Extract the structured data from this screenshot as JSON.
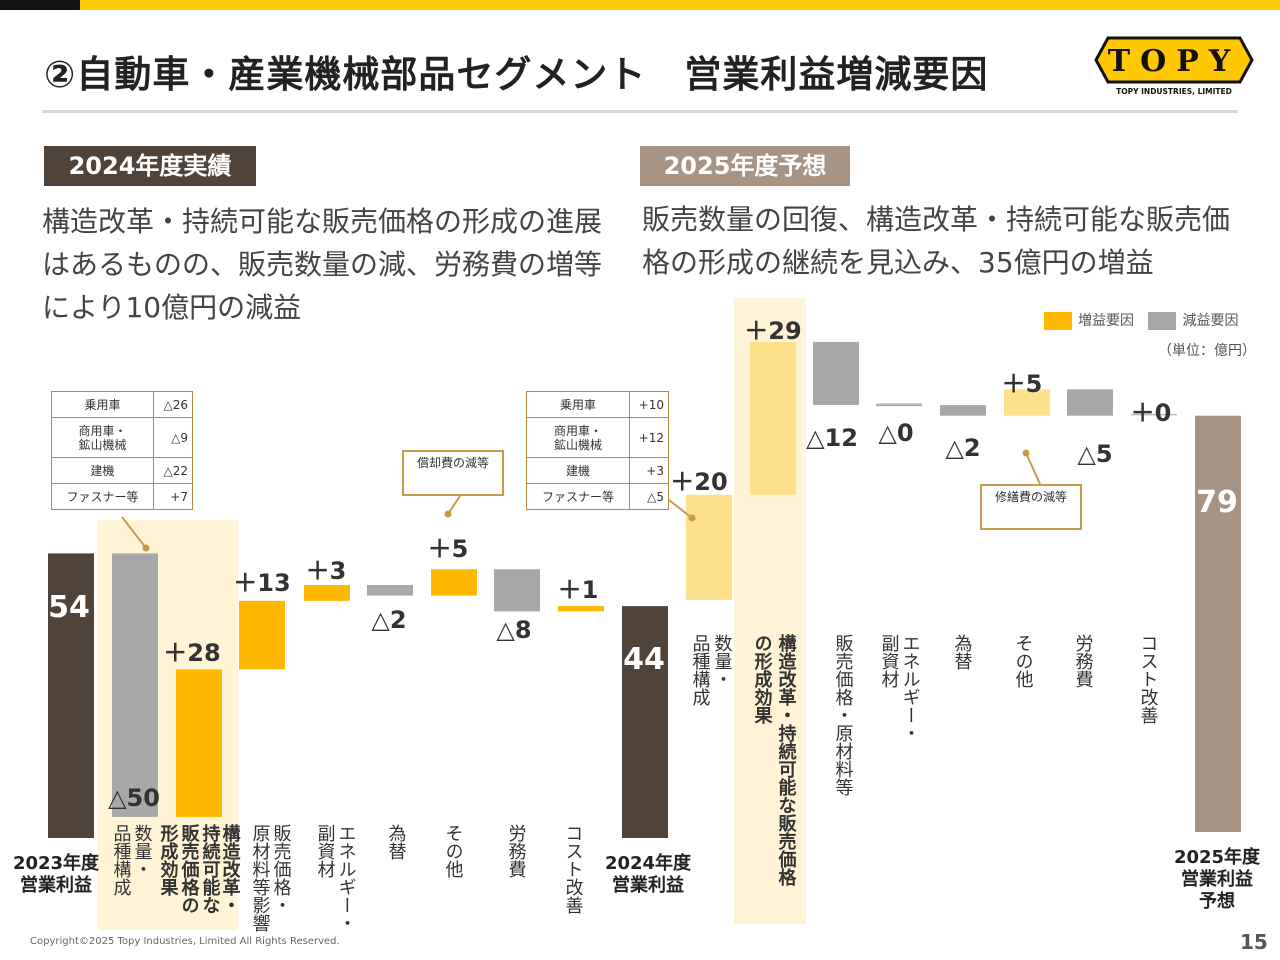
{
  "title": "②自動車・産業機械部品セグメント　営業利益増減要因",
  "logo": {
    "text": "TOPY",
    "subtext": "TOPY INDUSTRIES, LIMITED"
  },
  "sections": [
    {
      "label": "2024年度実績",
      "description": "構造改革・持続可能な販売価格の形成の進展はあるものの、販売数量の減、労務費の増等により10億円の減益"
    },
    {
      "label": "2025年度予想",
      "description": "販売数量の回復、構造改革・持続可能な販売価格の形成の継続を見込み、35億円の増益"
    }
  ],
  "legend": {
    "increase": "増益要因",
    "decrease": "減益要因"
  },
  "unit": "（単位：億円）",
  "colors": {
    "increase": "#FFB800",
    "increase_light": "#FFE08A",
    "decrease": "#A8A8A8",
    "total_dark": "#4F433A",
    "total_light": "#A69384",
    "highlight": "#FFF4D6"
  },
  "chart_data": [
    {
      "type": "bar",
      "subtype": "waterfall",
      "categories": [
        "2023年度 営業利益",
        "数量・品種構成",
        "構造改革・持続可能な販売価格の形成効果",
        "販売価格・原材料等影響",
        "エネルギー・副資材",
        "為替",
        "その他",
        "労務費",
        "コスト改善",
        "2024年度 営業利益"
      ],
      "values": [
        54,
        -50,
        28,
        13,
        3,
        -2,
        5,
        -8,
        1,
        44
      ],
      "value_labels": [
        "54",
        "△50",
        "＋28",
        "＋13",
        "＋3",
        "△2",
        "＋5",
        "△8",
        "＋1",
        "44"
      ],
      "kinds": [
        "total",
        "decrease",
        "increase",
        "increase",
        "increase",
        "decrease",
        "increase",
        "decrease",
        "increase",
        "total"
      ]
    },
    {
      "type": "bar",
      "subtype": "waterfall",
      "categories": [
        "数量・品種構成",
        "構造改革・持続可能な販売価格の形成効果",
        "販売価格・原材料等",
        "エネルギー・副資材",
        "為替",
        "その他",
        "労務費",
        "コスト改善",
        "2025年度 営業利益 予想"
      ],
      "values": [
        20,
        29,
        -12,
        0,
        -2,
        5,
        -5,
        0,
        79
      ],
      "value_labels": [
        "＋20",
        "＋29",
        "△12",
        "△0",
        "△2",
        "＋5",
        "△5",
        "＋0",
        "79"
      ],
      "kinds": [
        "increase",
        "increase",
        "decrease",
        "decrease",
        "decrease",
        "increase",
        "decrease",
        "increase",
        "total"
      ]
    }
  ],
  "xlabels": {
    "c1": [
      [
        "2023年度",
        "営業利益"
      ],
      [
        "数量・",
        "品種構成"
      ],
      [
        "構造改革・",
        "持続可能な",
        "販売価格の",
        "形成効果"
      ],
      [
        "販売価格・",
        "原材料等影響"
      ],
      [
        "エネルギー・",
        "副資材"
      ],
      [
        "為替"
      ],
      [
        "その他"
      ],
      [
        "労務費"
      ],
      [
        "コスト改善"
      ],
      [
        "2024年度",
        "営業利益"
      ]
    ],
    "c2": [
      [
        "数量・",
        "品種構成"
      ],
      [
        "構造改革・持続可能な販売価格",
        "の形成効果"
      ],
      [
        "販売価格・原材料等"
      ],
      [
        "エネルギー・",
        "副資材"
      ],
      [
        "為替"
      ],
      [
        "その他"
      ],
      [
        "労務費"
      ],
      [
        "コスト改善"
      ],
      [
        "2025年度",
        "営業利益",
        "予想"
      ]
    ]
  },
  "detail_tables": [
    {
      "rows": [
        [
          "乗用車",
          "△26"
        ],
        [
          "商用車・\n鉱山機械",
          "△9"
        ],
        [
          "建機",
          "△22"
        ],
        [
          "ファスナー等",
          "+7"
        ]
      ]
    },
    {
      "rows": [
        [
          "乗用車",
          "+10"
        ],
        [
          "商用車・\n鉱山機械",
          "+12"
        ],
        [
          "建機",
          "+3"
        ],
        [
          "ファスナー等",
          "△5"
        ]
      ]
    }
  ],
  "callouts": {
    "c1_other": "償却費の減等",
    "c2_other": "修繕費の減等"
  },
  "copyright": "Copyright©2025 Topy Industries, Limited All Rights Reserved.",
  "page_number": "15"
}
